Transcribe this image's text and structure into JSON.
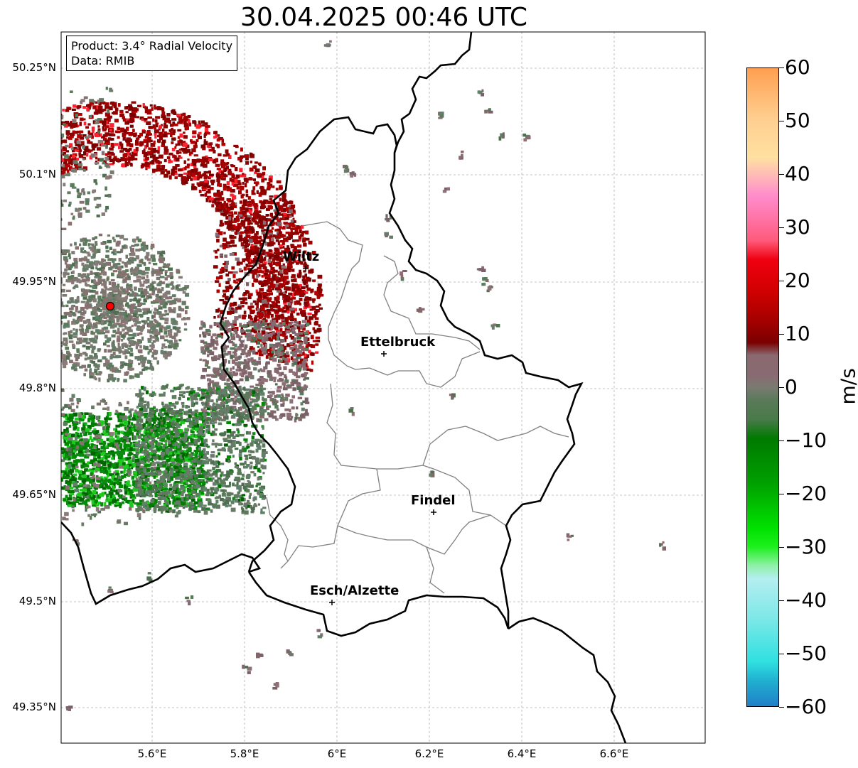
{
  "title": "30.04.2025 00:46 UTC",
  "info": {
    "product": "Product: 3.4° Radial Velocity",
    "data": "Data: RMIB"
  },
  "axes": {
    "lat_ticks": [
      "50.25°N",
      "50.1°N",
      "49.95°N",
      "49.8°N",
      "49.65°N",
      "49.5°N",
      "49.35°N"
    ],
    "lon_ticks": [
      "5.6°E",
      "5.8°E",
      "6°E",
      "6.2°E",
      "6.4°E",
      "6.6°E"
    ]
  },
  "cities": [
    {
      "name": "Wiltz"
    },
    {
      "name": "Ettelbruck"
    },
    {
      "name": "Findel"
    },
    {
      "name": "Esch/Alzette"
    }
  ],
  "colorbar": {
    "label": "m/s",
    "ticks": [
      "60",
      "50",
      "40",
      "30",
      "20",
      "10",
      "0",
      "−10",
      "−20",
      "−30",
      "−40",
      "−50",
      "−60"
    ],
    "min": -60,
    "max": 60,
    "colors": {
      "orange": "#ff9f50",
      "peach": "#ffcf90",
      "pink": "#ff8ccc",
      "salmon": "#ff5a7a",
      "red": "#f00010",
      "darkred": "#7a0000",
      "mauve": "#8a6a70",
      "grayish": "#7a7a70",
      "sage": "#5a7a5a",
      "green": "#007a00",
      "brightgreen": "#1cf01c",
      "lightgreen": "#90f0a8",
      "paleblue": "#b4eef0",
      "cyan": "#30e0e0",
      "blue": "#2080c8"
    }
  },
  "radar_site": {
    "color": "#ff0000"
  }
}
